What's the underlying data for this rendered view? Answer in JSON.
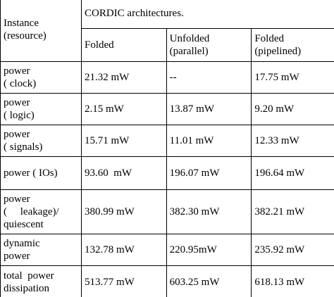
{
  "table": {
    "instance_header": [
      "Instance",
      "(resource)"
    ],
    "group_title": "CORDIC architectures.",
    "column_headers": [
      [
        "Folded"
      ],
      [
        "Unfolded",
        "(parallel)"
      ],
      [
        "Folded",
        "(pipelined)"
      ]
    ],
    "rows": [
      {
        "label": [
          "power",
          "( clock)"
        ],
        "values": [
          "21.32 mW",
          "--",
          "17.75 mW"
        ]
      },
      {
        "label": [
          "power",
          "( logic)"
        ],
        "values": [
          "2.15 mW",
          "13.87 mW",
          "9.20 mW"
        ]
      },
      {
        "label": [
          "power",
          "( signals)"
        ],
        "values": [
          "15.71 mW",
          "11.01 mW",
          "12.33 mW"
        ]
      },
      {
        "label": [
          "power ( IOs)"
        ],
        "values": [
          "93.60  mW",
          "196.07 mW",
          "196.64 mW"
        ]
      },
      {
        "label": [
          "power",
          "(     leakage)/",
          "quiescent"
        ],
        "values": [
          "380.99 mW",
          "382.30 mW",
          "382.21 mW"
        ]
      },
      {
        "label": [
          "dynamic",
          "power"
        ],
        "values": [
          "132.78 mW",
          "220.95mW",
          "235.92 mW"
        ]
      },
      {
        "label": [
          "total  power",
          "dissipation"
        ],
        "values": [
          "513.77 mW",
          "603.25 mW",
          "618.13 mW"
        ]
      }
    ]
  }
}
